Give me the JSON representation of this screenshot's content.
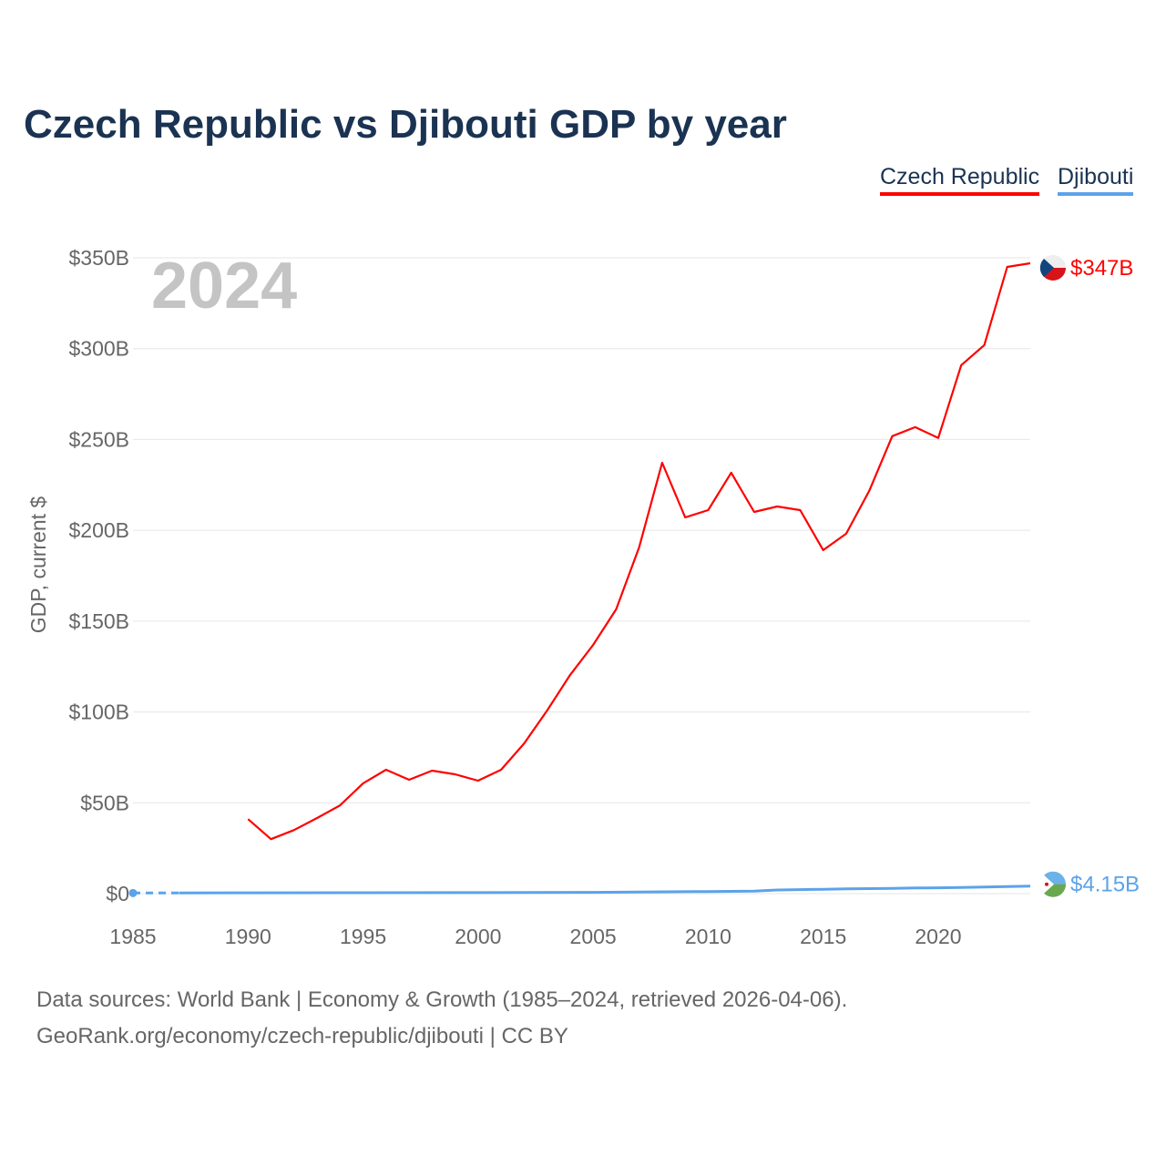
{
  "chart_data": {
    "type": "line",
    "title": "Czech Republic vs Djibouti GDP by year",
    "ylabel": "GDP, current $",
    "xlabel": "",
    "year_watermark": "2024",
    "ylim": [
      0,
      350
    ],
    "xlim": [
      1985,
      2024
    ],
    "y_ticks": [
      0,
      50,
      100,
      150,
      200,
      250,
      300,
      350
    ],
    "y_tick_labels": [
      "$0",
      "$50B",
      "$100B",
      "$150B",
      "$200B",
      "$250B",
      "$300B",
      "$350B"
    ],
    "x_ticks": [
      1985,
      1990,
      1995,
      2000,
      2005,
      2010,
      2015,
      2020
    ],
    "x_tick_labels": [
      "1985",
      "1990",
      "1995",
      "2000",
      "2005",
      "2010",
      "2015",
      "2020"
    ],
    "grid": true,
    "legend_placement": "top-right",
    "series": [
      {
        "name": "Czech Republic",
        "color": "#ff0000",
        "end_label": "$347B",
        "x": [
          1990,
          1991,
          1992,
          1993,
          1994,
          1995,
          1996,
          1997,
          1998,
          1999,
          2000,
          2001,
          2002,
          2003,
          2004,
          2005,
          2006,
          2007,
          2008,
          2009,
          2010,
          2011,
          2012,
          2013,
          2014,
          2015,
          2016,
          2017,
          2018,
          2019,
          2020,
          2021,
          2022,
          2023,
          2024
        ],
        "values": [
          41,
          30,
          35,
          41.6,
          48.6,
          60.7,
          68.2,
          62.7,
          67.7,
          65.7,
          62.2,
          68.2,
          82.7,
          100.8,
          120.4,
          136.9,
          156.5,
          190.6,
          237.2,
          207.1,
          211.1,
          231.7,
          210.1,
          213.1,
          211.1,
          189.1,
          198.1,
          221.7,
          251.8,
          256.8,
          250.8,
          290.9,
          301.9,
          345,
          347
        ]
      },
      {
        "name": "Djibouti",
        "color": "#5ba3ea",
        "end_label": "$4.15B",
        "x": [
          1985,
          1987,
          1990,
          1995,
          2000,
          2005,
          2010,
          2012,
          2013,
          2014,
          2015,
          2016,
          2017,
          2018,
          2019,
          2020,
          2021,
          2022,
          2023,
          2024
        ],
        "values": [
          0.34,
          0.38,
          0.45,
          0.5,
          0.55,
          0.71,
          1.13,
          1.35,
          2.0,
          2.2,
          2.4,
          2.6,
          2.75,
          2.9,
          3.1,
          3.2,
          3.4,
          3.6,
          3.9,
          4.15
        ]
      }
    ]
  },
  "footer": {
    "line1": "Data sources: World Bank | Economy & Growth (1985–2024, retrieved 2026-04-06).",
    "line2": "GeoRank.org/economy/czech-republic/djibouti | CC BY"
  }
}
